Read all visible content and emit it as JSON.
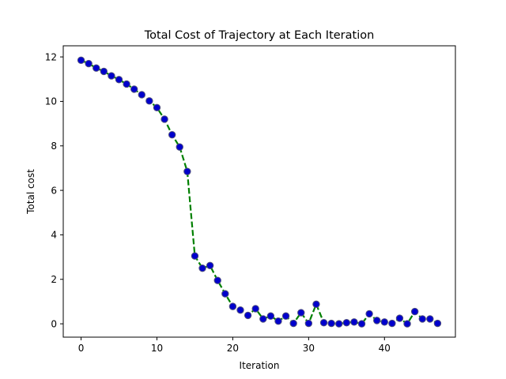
{
  "chart_data": {
    "type": "line",
    "title": "Total Cost of Trajectory at Each Iteration",
    "xlabel": "Iteration",
    "ylabel": "Total cost",
    "xlim": [
      -2.35,
      49.35
    ],
    "ylim": [
      -0.6,
      12.5
    ],
    "xticks": [
      0,
      10,
      20,
      30,
      40
    ],
    "yticks": [
      0,
      2,
      4,
      6,
      8,
      10,
      12
    ],
    "grid": false,
    "legend": "none",
    "series": [
      {
        "line_color": "#008000",
        "line_style": "dashed",
        "marker_face": "#0000cc",
        "marker_edge": "#4f4f7f",
        "x": [
          0,
          1,
          2,
          3,
          4,
          5,
          6,
          7,
          8,
          9,
          10,
          11,
          12,
          13,
          14,
          15,
          16,
          17,
          18,
          19,
          20,
          21,
          22,
          23,
          24,
          25,
          26,
          27,
          28,
          29,
          30,
          31,
          32,
          33,
          34,
          35,
          36,
          37,
          38,
          39,
          40,
          41,
          42,
          43,
          44,
          45,
          46,
          47
        ],
        "values": [
          11.85,
          11.7,
          11.5,
          11.35,
          11.15,
          10.98,
          10.78,
          10.55,
          10.3,
          10.02,
          9.72,
          9.2,
          8.5,
          7.95,
          6.85,
          3.05,
          2.5,
          2.62,
          1.95,
          1.35,
          0.78,
          0.62,
          0.38,
          0.68,
          0.22,
          0.35,
          0.12,
          0.35,
          0.02,
          0.5,
          0.02,
          0.88,
          0.05,
          0.02,
          0.0,
          0.05,
          0.08,
          0.0,
          0.45,
          0.15,
          0.08,
          0.02,
          0.25,
          0.0,
          0.55,
          0.22,
          0.22,
          0.02
        ]
      }
    ]
  }
}
